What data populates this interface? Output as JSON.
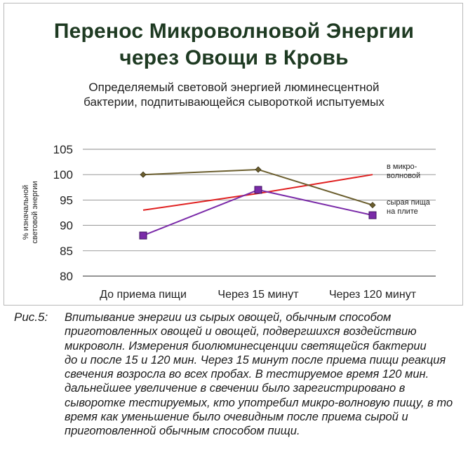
{
  "figure": {
    "title_lines": [
      "Перенос Микроволновой Энергии",
      "через Овощи в Кровь"
    ],
    "subtitle_lines": [
      "Определяемый световой энергией люминесцентной",
      "бактерии, подпитывающейся сывороткой испытуемых"
    ]
  },
  "chart_data": {
    "type": "line",
    "ylabel_lines": [
      "% изначальной",
      "световой энергии"
    ],
    "categories": [
      "До приема пищи",
      "Через 15 минут",
      "Через 120 минут"
    ],
    "ylim": [
      80,
      105
    ],
    "yticks": [
      80,
      85,
      90,
      95,
      100,
      105
    ],
    "grid": true,
    "series": [
      {
        "label_lines": [
          "в микро-",
          "волновой"
        ],
        "color": "#e02020",
        "marker": "none",
        "values": [
          93,
          96.3,
          100
        ]
      },
      {
        "label_lines": [
          "сырая пища",
          "на плите"
        ],
        "color": "#6b5e2e",
        "marker": "diamond",
        "values": [
          100,
          101,
          94
        ]
      },
      {
        "label_lines": [],
        "color": "#7a2aa8",
        "marker": "square",
        "values": [
          88,
          97,
          92
        ]
      }
    ]
  },
  "caption": {
    "label": "Рис.5:",
    "lines": [
      "Впитывание энергии из сырых овощей, обычным способом",
      "приготовленных овощей и овощей, подвергшихся воздействию",
      "микроволн. Измерения биолюминесценции светящейся бактерии",
      "до и после 15 и 120 мин. Через 15 минут после приема пищи реакция",
      "свечения возросла во всех пробах. В тестируемое время 120 мин.",
      "дальнейшее увеличение в свечении было зарегистрировано в",
      "сыворотке тестируемых, кто употребил микро-волновую пищу, в то",
      "время как уменьшение было очевидным после приема сырой и",
      "приготовленной обычным способом пищи."
    ]
  }
}
